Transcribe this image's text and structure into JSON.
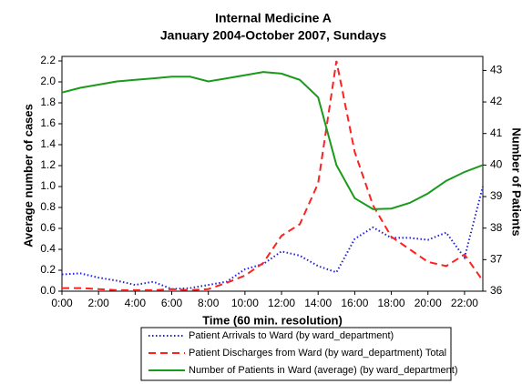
{
  "chart_data": {
    "type": "line",
    "title": [
      "Internal Medicine A",
      "January 2004-October 2007, Sundays"
    ],
    "x_label": "Time (60 min. resolution)",
    "y_label": "Average number of cases",
    "y2_label": "Number of Patients",
    "x": [
      0,
      1,
      2,
      3,
      4,
      5,
      6,
      7,
      8,
      9,
      10,
      11,
      12,
      13,
      14,
      15,
      16,
      17,
      18,
      19,
      20,
      21,
      22,
      23
    ],
    "xlim": [
      0,
      23
    ],
    "xticks": [
      {
        "value": 0,
        "label": "0:00"
      },
      {
        "value": 2,
        "label": "2:00"
      },
      {
        "value": 4,
        "label": "4:00"
      },
      {
        "value": 6,
        "label": "6:00"
      },
      {
        "value": 8,
        "label": "8:00"
      },
      {
        "value": 10,
        "label": "10:00"
      },
      {
        "value": 12,
        "label": "12:00"
      },
      {
        "value": 14,
        "label": "14:00"
      },
      {
        "value": 16,
        "label": "16:00"
      },
      {
        "value": 18,
        "label": "18:00"
      },
      {
        "value": 20,
        "label": "20:00"
      },
      {
        "value": 22,
        "label": "22:00"
      }
    ],
    "ylim": [
      0,
      2.2
    ],
    "yticks": [
      {
        "value": 0,
        "label": "0.0"
      },
      {
        "value": 0.2,
        "label": "0.2"
      },
      {
        "value": 0.4,
        "label": "0.4"
      },
      {
        "value": 0.6,
        "label": "0.6"
      },
      {
        "value": 0.8,
        "label": "0.8"
      },
      {
        "value": 1,
        "label": "1.0"
      },
      {
        "value": 1.2,
        "label": "1.2"
      },
      {
        "value": 1.4,
        "label": "1.4"
      },
      {
        "value": 1.6,
        "label": "1.6"
      },
      {
        "value": 1.8,
        "label": "1.8"
      },
      {
        "value": 2,
        "label": "2.0"
      },
      {
        "value": 2.2,
        "label": "2.2"
      }
    ],
    "y2lim": [
      36,
      43.3
    ],
    "y2ticks": [
      36,
      37,
      38,
      39,
      40,
      41,
      42,
      43
    ],
    "series": [
      {
        "name": "Patient Arrivals to Ward (by ward_department)",
        "color": "#2020e0",
        "dash": "dotted",
        "values": [
          0.16,
          0.17,
          0.13,
          0.1,
          0.06,
          0.09,
          0.02,
          0.03,
          0.06,
          0.09,
          0.21,
          0.26,
          0.38,
          0.34,
          0.24,
          0.18,
          0.5,
          0.61,
          0.51,
          0.51,
          0.49,
          0.56,
          0.32,
          1.0
        ]
      },
      {
        "name": "Patient Discharges from Ward  (by ward_department) Total",
        "color": "#ff2020",
        "dash": "dashed",
        "values": [
          0.03,
          0.03,
          0.02,
          0.01,
          0.01,
          0.01,
          0.02,
          0.01,
          0.02,
          0.08,
          0.15,
          0.27,
          0.53,
          0.64,
          1.03,
          2.2,
          1.33,
          0.82,
          0.52,
          0.4,
          0.28,
          0.24,
          0.35,
          0.1
        ]
      },
      {
        "name": "Number of Patients in Ward (average) (by ward_department)",
        "color": "#1a9a1a",
        "dash": "solid",
        "axis": "y2",
        "values": [
          42.3,
          42.45,
          42.55,
          42.65,
          42.7,
          42.75,
          42.8,
          42.8,
          42.65,
          42.75,
          42.85,
          42.95,
          42.9,
          42.7,
          42.15,
          40.0,
          38.95,
          38.6,
          38.62,
          38.8,
          39.1,
          39.5,
          39.78,
          40.0
        ]
      }
    ]
  }
}
